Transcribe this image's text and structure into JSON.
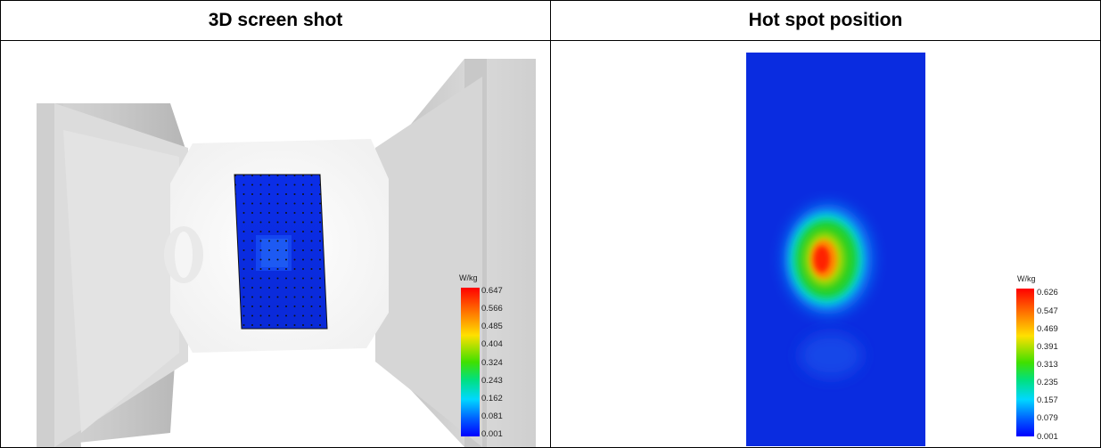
{
  "headers": {
    "left": "3D screen shot",
    "right": "Hot spot position"
  },
  "left_legend": {
    "unit": "W/kg",
    "ticks": [
      "0.647",
      "0.566",
      "0.485",
      "0.404",
      "0.324",
      "0.243",
      "0.162",
      "0.081",
      "0.001"
    ]
  },
  "right_legend": {
    "unit": "W/kg",
    "ticks": [
      "0.626",
      "0.547",
      "0.469",
      "0.391",
      "0.313",
      "0.235",
      "0.157",
      "0.079",
      "0.001"
    ]
  },
  "colors": {
    "scale_top": "#ff0000",
    "scale_mid_high": "#ffe000",
    "scale_mid": "#00e000",
    "scale_mid_low": "#00e0ff",
    "scale_bottom": "#0000ff",
    "field_background": "#0a2ce0",
    "phantom_gray": "#e6e6e6"
  }
}
